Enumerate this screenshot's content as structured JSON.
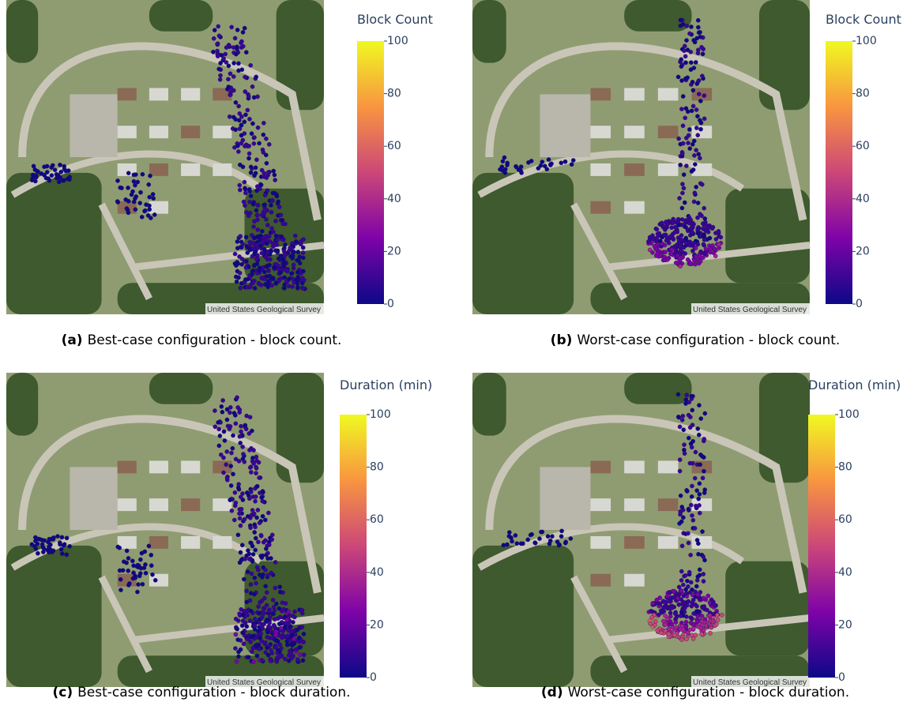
{
  "figure": {
    "panels": [
      {
        "colorbar_title": "Block Count",
        "colorbar_lim": [
          0,
          100
        ],
        "colorbar_ticks": [
          0,
          20,
          40,
          60,
          80,
          100
        ],
        "attribution": "United States Geological Survey",
        "caption": {
          "label": "(a)",
          "text": "Best-case configuration - block count."
        }
      },
      {
        "colorbar_title": "Block Count",
        "colorbar_lim": [
          0,
          100
        ],
        "colorbar_ticks": [
          0,
          20,
          40,
          60,
          80,
          100
        ],
        "attribution": "United States Geological Survey",
        "caption": {
          "label": "(b)",
          "text": "Worst-case configuration - block count."
        }
      },
      {
        "colorbar_title": "Duration (min)",
        "colorbar_lim": [
          0,
          100
        ],
        "colorbar_ticks": [
          0,
          20,
          40,
          60,
          80,
          100
        ],
        "attribution": "United States Geological Survey",
        "caption": {
          "label": "(c)",
          "text": "Best-case configuration - block duration."
        }
      },
      {
        "colorbar_title": "Duration (min)",
        "colorbar_lim": [
          0,
          100
        ],
        "colorbar_ticks": [
          0,
          20,
          40,
          60,
          80,
          100
        ],
        "attribution": "United States Geological Survey",
        "caption": {
          "label": "(d)",
          "text": "Worst-case configuration - block duration."
        }
      }
    ]
  }
}
